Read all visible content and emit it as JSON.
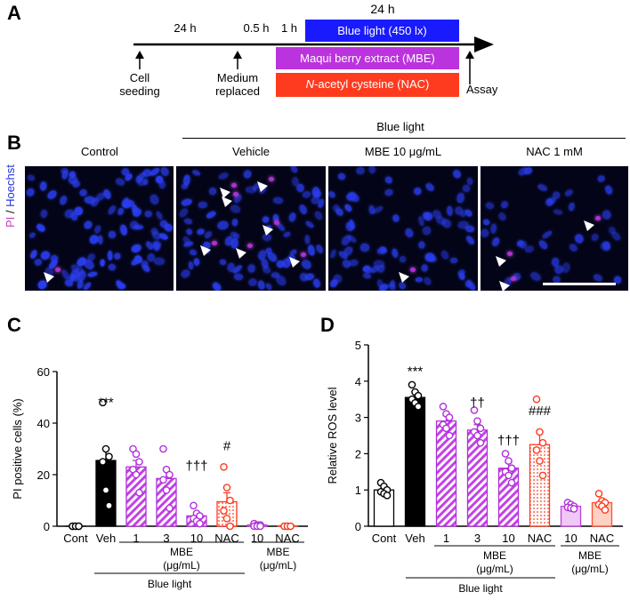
{
  "panels": {
    "a": "A",
    "b": "B",
    "c": "C",
    "d": "D"
  },
  "timeline": {
    "top_24h": "24 h",
    "left_24h": "24 h",
    "half_hour": "0.5 h",
    "one_hour": "1 h",
    "blue_light_box": "Blue light (450 lx)",
    "mbe_box": "Maqui berry extract (MBE)",
    "nac_box_italic": "N",
    "nac_box_rest": "-acetyl cysteine (NAC)",
    "cell_seeding_1": "Cell",
    "cell_seeding_2": "seeding",
    "medium_1": "Medium",
    "medium_2": "replaced",
    "assay": "Assay",
    "colors": {
      "blue": "#1a1aff",
      "purple": "#bb33dd",
      "red": "#ff3b1f"
    }
  },
  "images": {
    "blue_light_header": "Blue light",
    "labels": [
      "Control",
      "Vehicle",
      "MBE 10 μg/mL",
      "NAC 1 mM"
    ],
    "ylabel_pi": "PI",
    "ylabel_sep": " / ",
    "ylabel_hoechst": "Hoechst"
  },
  "chart_data": [
    {
      "type": "bar",
      "panel": "C",
      "ylabel": "PI positive cells (%)",
      "ylim": [
        0,
        60
      ],
      "yticks": [
        0,
        20,
        40,
        60
      ],
      "categories": [
        "Cont",
        "Veh",
        "1",
        "3",
        "10",
        "NAC",
        "10",
        "NAC"
      ],
      "values": [
        0,
        25.5,
        23,
        18.5,
        4,
        9.5,
        0.5,
        0.2
      ],
      "errors": [
        0.2,
        4.3,
        2.5,
        3.5,
        1.2,
        3.5,
        0.3,
        0.2
      ],
      "points": [
        [
          0,
          0,
          0,
          0,
          0,
          0
        ],
        [
          48,
          30,
          27,
          25,
          14,
          8
        ],
        [
          30,
          28,
          25,
          22,
          20,
          13
        ],
        [
          30,
          22,
          20,
          18,
          14,
          7
        ],
        [
          8,
          5,
          4,
          3,
          2,
          1
        ],
        [
          23,
          15,
          10,
          6,
          3,
          0
        ],
        [
          1,
          0.5,
          0.5,
          0,
          0,
          0
        ],
        [
          0,
          0,
          0,
          0,
          0,
          0
        ]
      ],
      "styles": [
        "open",
        "black",
        "purple-hatch",
        "purple-hatch",
        "purple-hatch",
        "red-dots",
        "light-purple",
        "light-red"
      ],
      "annotations": [
        "",
        "***",
        "",
        "",
        "†††",
        "#",
        "",
        ""
      ],
      "group_labels": [
        "MBE",
        "(μg/mL)",
        "MBE",
        "(μg/mL)",
        "Blue light"
      ]
    },
    {
      "type": "bar",
      "panel": "D",
      "ylabel": "Relative ROS level",
      "ylim": [
        0,
        5
      ],
      "yticks": [
        0,
        1,
        2,
        3,
        4,
        5
      ],
      "categories": [
        "Cont",
        "Veh",
        "1",
        "3",
        "10",
        "NAC",
        "10",
        "NAC"
      ],
      "values": [
        1.0,
        3.55,
        2.9,
        2.65,
        1.6,
        2.25,
        0.55,
        0.65
      ],
      "errors": [
        0.08,
        0.12,
        0.15,
        0.15,
        0.15,
        0.32,
        0.05,
        0.07
      ],
      "points": [
        [
          1.2,
          1.1,
          1.0,
          0.95,
          0.9,
          0.85
        ],
        [
          3.9,
          3.7,
          3.6,
          3.5,
          3.4,
          3.3
        ],
        [
          3.3,
          3.1,
          3.0,
          2.8,
          2.7,
          2.5
        ],
        [
          3.2,
          2.9,
          2.7,
          2.6,
          2.5,
          2.3
        ],
        [
          2.0,
          1.8,
          1.6,
          1.5,
          1.4,
          1.2
        ],
        [
          3.5,
          2.6,
          2.3,
          2.1,
          1.8,
          1.4
        ],
        [
          0.65,
          0.6,
          0.55,
          0.52,
          0.5,
          0.48
        ],
        [
          0.9,
          0.7,
          0.65,
          0.6,
          0.55,
          0.45
        ]
      ],
      "styles": [
        "open",
        "black",
        "purple-hatch",
        "purple-hatch",
        "purple-hatch",
        "red-dots",
        "light-purple",
        "light-red"
      ],
      "annotations": [
        "",
        "***",
        "",
        "††",
        "†††",
        "###",
        "",
        ""
      ],
      "group_labels": [
        "MBE",
        "(μg/mL)",
        "MBE",
        "(μg/mL)",
        "Blue light"
      ]
    }
  ]
}
